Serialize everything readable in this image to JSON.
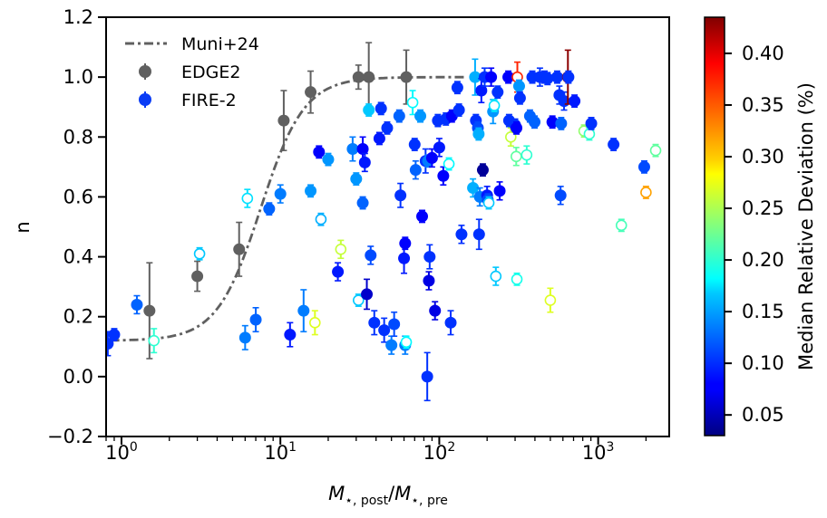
{
  "chart_data": {
    "type": "scatter",
    "xscale": "log",
    "xlim": [
      0.8,
      2800
    ],
    "ylim": [
      -0.2,
      1.2
    ],
    "ylabel": "n",
    "xlabel": "M⋆,post/M⋆,pre",
    "xlabel_parts": {
      "base": "M",
      "sub1": "⋆, post",
      "sep": "/",
      "sub2": "⋆, pre"
    },
    "x_ticks": [
      {
        "value": 1,
        "base": "10",
        "exp": "0"
      },
      {
        "value": 10,
        "base": "10",
        "exp": "1"
      },
      {
        "value": 100,
        "base": "10",
        "exp": "2"
      },
      {
        "value": 1000,
        "base": "10",
        "exp": "3"
      }
    ],
    "y_ticks": [
      {
        "value": -0.2,
        "label": "−0.2"
      },
      {
        "value": 0.0,
        "label": "0.0"
      },
      {
        "value": 0.2,
        "label": "0.2"
      },
      {
        "value": 0.4,
        "label": "0.4"
      },
      {
        "value": 0.6,
        "label": "0.6"
      },
      {
        "value": 0.8,
        "label": "0.8"
      },
      {
        "value": 1.0,
        "label": "1.0"
      },
      {
        "value": 1.2,
        "label": "1.2"
      }
    ],
    "colorbar": {
      "label": "Median Relative Deviation (%)",
      "range": [
        0.03,
        0.435
      ],
      "colormap": "jet",
      "ticks": [
        {
          "value": 0.05,
          "label": "0.05"
        },
        {
          "value": 0.1,
          "label": "0.10"
        },
        {
          "value": 0.15,
          "label": "0.15"
        },
        {
          "value": 0.2,
          "label": "0.20"
        },
        {
          "value": 0.25,
          "label": "0.25"
        },
        {
          "value": 0.3,
          "label": "0.30"
        },
        {
          "value": 0.35,
          "label": "0.35"
        },
        {
          "value": 0.4,
          "label": "0.40"
        }
      ]
    },
    "legend": {
      "position": "top-left",
      "entries": [
        {
          "label": "Muni+24",
          "kind": "line",
          "color": "#606060"
        },
        {
          "label": "EDGE2",
          "kind": "marker",
          "color": "#606060"
        },
        {
          "label": "FIRE-2",
          "kind": "marker",
          "color": "#0a3cf5"
        }
      ]
    },
    "muni_curve": {
      "label": "Muni+24",
      "color": "#606060",
      "x0": 7.5,
      "width": 0.55,
      "ymin": 0.12,
      "ymax": 1.0,
      "xmin": 0.85,
      "xmax": 150
    },
    "edge2": {
      "name": "EDGE2",
      "color": "#606060",
      "points": [
        {
          "x": 1.5,
          "y": 0.22,
          "err": 0.16
        },
        {
          "x": 3.0,
          "y": 0.335,
          "err": 0.05
        },
        {
          "x": 5.5,
          "y": 0.425,
          "err": 0.09
        },
        {
          "x": 10.5,
          "y": 0.855,
          "err": 0.1
        },
        {
          "x": 15.5,
          "y": 0.95,
          "err": 0.07
        },
        {
          "x": 31,
          "y": 1.0,
          "err": 0.04
        },
        {
          "x": 36,
          "y": 1.0,
          "err": 0.115
        },
        {
          "x": 62,
          "y": 1.0,
          "err": 0.09
        }
      ]
    },
    "fire2": {
      "name": "FIRE-2",
      "points": [
        {
          "x": 0.82,
          "y": 0.11,
          "err": 0.04,
          "c": 0.1,
          "filled": true
        },
        {
          "x": 0.9,
          "y": 0.14,
          "err": 0.02,
          "c": 0.1,
          "filled": true
        },
        {
          "x": 1.25,
          "y": 0.24,
          "err": 0.03,
          "c": 0.12,
          "filled": true
        },
        {
          "x": 1.6,
          "y": 0.12,
          "err": 0.04,
          "c": 0.2,
          "filled": false
        },
        {
          "x": 3.1,
          "y": 0.41,
          "err": 0.02,
          "c": 0.16,
          "filled": false
        },
        {
          "x": 6.0,
          "y": 0.13,
          "err": 0.04,
          "c": 0.13,
          "filled": true
        },
        {
          "x": 6.2,
          "y": 0.595,
          "err": 0.03,
          "c": 0.17,
          "filled": false
        },
        {
          "x": 7.0,
          "y": 0.19,
          "err": 0.04,
          "c": 0.12,
          "filled": true
        },
        {
          "x": 8.5,
          "y": 0.56,
          "err": 0.02,
          "c": 0.12,
          "filled": true
        },
        {
          "x": 10.0,
          "y": 0.61,
          "err": 0.03,
          "c": 0.13,
          "filled": true
        },
        {
          "x": 11.5,
          "y": 0.14,
          "err": 0.04,
          "c": 0.09,
          "filled": true
        },
        {
          "x": 14.0,
          "y": 0.22,
          "err": 0.07,
          "c": 0.13,
          "filled": true
        },
        {
          "x": 15.5,
          "y": 0.62,
          "err": 0.02,
          "c": 0.14,
          "filled": true
        },
        {
          "x": 16.5,
          "y": 0.18,
          "err": 0.04,
          "c": 0.27,
          "filled": false
        },
        {
          "x": 17.5,
          "y": 0.75,
          "err": 0.02,
          "c": 0.08,
          "filled": true
        },
        {
          "x": 18.0,
          "y": 0.525,
          "err": 0.02,
          "c": 0.15,
          "filled": false
        },
        {
          "x": 20.0,
          "y": 0.725,
          "err": 0.02,
          "c": 0.14,
          "filled": true
        },
        {
          "x": 23.0,
          "y": 0.35,
          "err": 0.03,
          "c": 0.09,
          "filled": true
        },
        {
          "x": 24.0,
          "y": 0.425,
          "err": 0.03,
          "c": 0.26,
          "filled": false
        },
        {
          "x": 28.5,
          "y": 0.76,
          "err": 0.04,
          "c": 0.13,
          "filled": true
        },
        {
          "x": 30.0,
          "y": 0.66,
          "err": 0.02,
          "c": 0.14,
          "filled": true
        },
        {
          "x": 31.0,
          "y": 0.255,
          "err": 0.02,
          "c": 0.16,
          "filled": false
        },
        {
          "x": 33.0,
          "y": 0.58,
          "err": 0.02,
          "c": 0.12,
          "filled": true
        },
        {
          "x": 33.0,
          "y": 0.76,
          "err": 0.04,
          "c": 0.08,
          "filled": true
        },
        {
          "x": 34.0,
          "y": 0.715,
          "err": 0.03,
          "c": 0.09,
          "filled": true
        },
        {
          "x": 35.0,
          "y": 0.275,
          "err": 0.05,
          "c": 0.06,
          "filled": true
        },
        {
          "x": 36.0,
          "y": 0.89,
          "err": 0.02,
          "c": 0.16,
          "filled": true
        },
        {
          "x": 37.0,
          "y": 0.405,
          "err": 0.03,
          "c": 0.11,
          "filled": true
        },
        {
          "x": 39.0,
          "y": 0.18,
          "err": 0.04,
          "c": 0.1,
          "filled": true
        },
        {
          "x": 43.0,
          "y": 0.895,
          "err": 0.02,
          "c": 0.1,
          "filled": true
        },
        {
          "x": 42.0,
          "y": 0.795,
          "err": 0.02,
          "c": 0.09,
          "filled": true
        },
        {
          "x": 45.0,
          "y": 0.155,
          "err": 0.04,
          "c": 0.1,
          "filled": true
        },
        {
          "x": 47.0,
          "y": 0.83,
          "err": 0.02,
          "c": 0.1,
          "filled": true
        },
        {
          "x": 50.0,
          "y": 0.105,
          "err": 0.03,
          "c": 0.13,
          "filled": true
        },
        {
          "x": 52.0,
          "y": 0.175,
          "err": 0.04,
          "c": 0.11,
          "filled": true
        },
        {
          "x": 56.0,
          "y": 0.87,
          "err": 0.02,
          "c": 0.12,
          "filled": true
        },
        {
          "x": 57.0,
          "y": 0.605,
          "err": 0.04,
          "c": 0.1,
          "filled": true
        },
        {
          "x": 60.0,
          "y": 0.395,
          "err": 0.05,
          "c": 0.09,
          "filled": true
        },
        {
          "x": 61.0,
          "y": 0.445,
          "err": 0.02,
          "c": 0.08,
          "filled": true
        },
        {
          "x": 61.0,
          "y": 0.105,
          "err": 0.03,
          "c": 0.13,
          "filled": true
        },
        {
          "x": 62.0,
          "y": 0.115,
          "err": 0.02,
          "c": 0.18,
          "filled": false
        },
        {
          "x": 68.0,
          "y": 0.915,
          "err": 0.04,
          "c": 0.18,
          "filled": false
        },
        {
          "x": 70.0,
          "y": 0.775,
          "err": 0.02,
          "c": 0.1,
          "filled": true
        },
        {
          "x": 71.0,
          "y": 0.69,
          "err": 0.03,
          "c": 0.12,
          "filled": true
        },
        {
          "x": 76.0,
          "y": 0.87,
          "err": 0.02,
          "c": 0.14,
          "filled": true
        },
        {
          "x": 78.0,
          "y": 0.535,
          "err": 0.02,
          "c": 0.08,
          "filled": true
        },
        {
          "x": 82.0,
          "y": 0.72,
          "err": 0.04,
          "c": 0.1,
          "filled": true
        },
        {
          "x": 84.0,
          "y": 0.0,
          "err": 0.08,
          "c": 0.1,
          "filled": true
        },
        {
          "x": 85.0,
          "y": 0.72,
          "err": 0.02,
          "c": 0.13,
          "filled": true
        },
        {
          "x": 86.0,
          "y": 0.32,
          "err": 0.03,
          "c": 0.07,
          "filled": true
        },
        {
          "x": 87.0,
          "y": 0.4,
          "err": 0.04,
          "c": 0.1,
          "filled": true
        },
        {
          "x": 90.0,
          "y": 0.73,
          "err": 0.03,
          "c": 0.08,
          "filled": true
        },
        {
          "x": 94.0,
          "y": 0.22,
          "err": 0.03,
          "c": 0.07,
          "filled": true
        },
        {
          "x": 98.0,
          "y": 0.855,
          "err": 0.02,
          "c": 0.1,
          "filled": true
        },
        {
          "x": 100.0,
          "y": 0.765,
          "err": 0.03,
          "c": 0.09,
          "filled": true
        },
        {
          "x": 106.0,
          "y": 0.67,
          "err": 0.03,
          "c": 0.08,
          "filled": true
        },
        {
          "x": 110.0,
          "y": 0.86,
          "err": 0.02,
          "c": 0.1,
          "filled": true
        },
        {
          "x": 115.0,
          "y": 0.71,
          "err": 0.02,
          "c": 0.18,
          "filled": false
        },
        {
          "x": 118.0,
          "y": 0.18,
          "err": 0.04,
          "c": 0.1,
          "filled": true
        },
        {
          "x": 120.0,
          "y": 0.87,
          "err": 0.02,
          "c": 0.08,
          "filled": true
        },
        {
          "x": 130.0,
          "y": 0.965,
          "err": 0.02,
          "c": 0.1,
          "filled": true
        },
        {
          "x": 133.0,
          "y": 0.89,
          "err": 0.02,
          "c": 0.1,
          "filled": true
        },
        {
          "x": 138.0,
          "y": 0.475,
          "err": 0.03,
          "c": 0.1,
          "filled": true
        },
        {
          "x": 163.0,
          "y": 0.63,
          "err": 0.03,
          "c": 0.15,
          "filled": true
        },
        {
          "x": 168.0,
          "y": 1.0,
          "err": 0.06,
          "c": 0.15,
          "filled": true
        },
        {
          "x": 170.0,
          "y": 0.855,
          "err": 0.02,
          "c": 0.1,
          "filled": true
        },
        {
          "x": 175.0,
          "y": 0.83,
          "err": 0.02,
          "c": 0.11,
          "filled": true
        },
        {
          "x": 177.0,
          "y": 0.81,
          "err": 0.02,
          "c": 0.15,
          "filled": true
        },
        {
          "x": 178.0,
          "y": 0.475,
          "err": 0.05,
          "c": 0.1,
          "filled": true
        },
        {
          "x": 180.0,
          "y": 0.6,
          "err": 0.03,
          "c": 0.13,
          "filled": true
        },
        {
          "x": 184.0,
          "y": 0.955,
          "err": 0.04,
          "c": 0.09,
          "filled": true
        },
        {
          "x": 188.0,
          "y": 0.69,
          "err": 0.02,
          "c": 0.04,
          "filled": true
        },
        {
          "x": 193.0,
          "y": 1.0,
          "err": 0.03,
          "c": 0.1,
          "filled": true
        },
        {
          "x": 200.0,
          "y": 0.605,
          "err": 0.03,
          "c": 0.09,
          "filled": true
        },
        {
          "x": 202.0,
          "y": 0.59,
          "err": 0.02,
          "c": 0.11,
          "filled": true
        },
        {
          "x": 205.0,
          "y": 0.58,
          "err": 0.02,
          "c": 0.16,
          "filled": false
        },
        {
          "x": 212.0,
          "y": 1.0,
          "err": 0.03,
          "c": 0.08,
          "filled": true
        },
        {
          "x": 218.0,
          "y": 0.885,
          "err": 0.04,
          "c": 0.14,
          "filled": true
        },
        {
          "x": 222.0,
          "y": 0.905,
          "err": 0.02,
          "c": 0.17,
          "filled": false
        },
        {
          "x": 227.0,
          "y": 0.335,
          "err": 0.03,
          "c": 0.16,
          "filled": false
        },
        {
          "x": 233.0,
          "y": 0.95,
          "err": 0.02,
          "c": 0.1,
          "filled": true
        },
        {
          "x": 240.0,
          "y": 0.62,
          "err": 0.03,
          "c": 0.08,
          "filled": true
        },
        {
          "x": 272.0,
          "y": 1.0,
          "err": 0.02,
          "c": 0.08,
          "filled": true
        },
        {
          "x": 275.0,
          "y": 0.855,
          "err": 0.02,
          "c": 0.1,
          "filled": true
        },
        {
          "x": 282.0,
          "y": 0.8,
          "err": 0.03,
          "c": 0.26,
          "filled": false
        },
        {
          "x": 300.0,
          "y": 0.84,
          "err": 0.02,
          "c": 0.1,
          "filled": true
        },
        {
          "x": 305.0,
          "y": 0.735,
          "err": 0.03,
          "c": 0.22,
          "filled": false
        },
        {
          "x": 306.0,
          "y": 0.83,
          "err": 0.02,
          "c": 0.08,
          "filled": true
        },
        {
          "x": 308.0,
          "y": 0.325,
          "err": 0.02,
          "c": 0.19,
          "filled": false
        },
        {
          "x": 310.0,
          "y": 1.0,
          "err": 0.05,
          "c": 0.37,
          "filled": false
        },
        {
          "x": 318.0,
          "y": 0.97,
          "err": 0.02,
          "c": 0.14,
          "filled": true
        },
        {
          "x": 322.0,
          "y": 0.93,
          "err": 0.02,
          "c": 0.1,
          "filled": true
        },
        {
          "x": 355.0,
          "y": 0.74,
          "err": 0.03,
          "c": 0.2,
          "filled": false
        },
        {
          "x": 372.0,
          "y": 0.87,
          "err": 0.02,
          "c": 0.12,
          "filled": true
        },
        {
          "x": 385.0,
          "y": 1.0,
          "err": 0.02,
          "c": 0.1,
          "filled": true
        },
        {
          "x": 398.0,
          "y": 0.85,
          "err": 0.02,
          "c": 0.12,
          "filled": true
        },
        {
          "x": 430.0,
          "y": 1.0,
          "err": 0.03,
          "c": 0.1,
          "filled": true
        },
        {
          "x": 460.0,
          "y": 1.0,
          "err": 0.02,
          "c": 0.1,
          "filled": true
        },
        {
          "x": 480.0,
          "y": 0.995,
          "err": 0.02,
          "c": 0.1,
          "filled": true
        },
        {
          "x": 500.0,
          "y": 0.255,
          "err": 0.04,
          "c": 0.27,
          "filled": false
        },
        {
          "x": 515.0,
          "y": 0.85,
          "err": 0.02,
          "c": 0.08,
          "filled": true
        },
        {
          "x": 552.0,
          "y": 1.0,
          "err": 0.02,
          "c": 0.1,
          "filled": true
        },
        {
          "x": 570.0,
          "y": 0.94,
          "err": 0.03,
          "c": 0.1,
          "filled": true
        },
        {
          "x": 580.0,
          "y": 0.605,
          "err": 0.03,
          "c": 0.11,
          "filled": true
        },
        {
          "x": 585.0,
          "y": 0.845,
          "err": 0.02,
          "c": 0.12,
          "filled": true
        },
        {
          "x": 610.0,
          "y": 0.92,
          "err": 0.03,
          "c": 0.1,
          "filled": true
        },
        {
          "x": 645.0,
          "y": 1.0,
          "err": 0.09,
          "c": 0.43,
          "filled": true
        },
        {
          "x": 650.0,
          "y": 1.0,
          "err": 0.02,
          "c": 0.1,
          "filled": true
        },
        {
          "x": 710.0,
          "y": 0.92,
          "err": 0.02,
          "c": 0.09,
          "filled": true
        },
        {
          "x": 815.0,
          "y": 0.82,
          "err": 0.02,
          "c": 0.24,
          "filled": false
        },
        {
          "x": 880.0,
          "y": 0.81,
          "err": 0.02,
          "c": 0.2,
          "filled": false
        },
        {
          "x": 905.0,
          "y": 0.845,
          "err": 0.02,
          "c": 0.1,
          "filled": true
        },
        {
          "x": 1250.0,
          "y": 0.775,
          "err": 0.02,
          "c": 0.1,
          "filled": true
        },
        {
          "x": 1400.0,
          "y": 0.505,
          "err": 0.02,
          "c": 0.21,
          "filled": false
        },
        {
          "x": 1950.0,
          "y": 0.7,
          "err": 0.02,
          "c": 0.11,
          "filled": true
        },
        {
          "x": 2000.0,
          "y": 0.615,
          "err": 0.02,
          "c": 0.32,
          "filled": false
        },
        {
          "x": 2300.0,
          "y": 0.755,
          "err": 0.02,
          "c": 0.22,
          "filled": false
        }
      ]
    }
  }
}
